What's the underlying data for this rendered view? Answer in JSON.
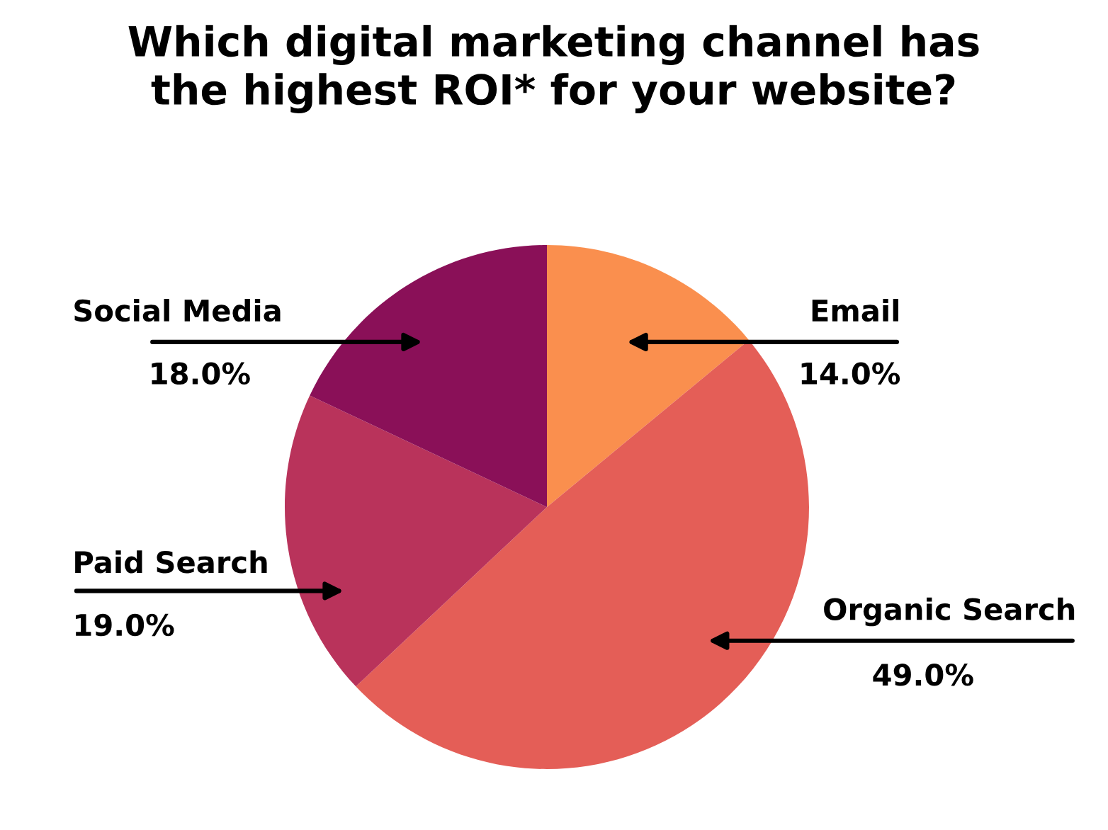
{
  "chart_data": {
    "type": "pie",
    "title": "Which digital marketing channel has\nthe highest ROI* for your website?",
    "categories": [
      "Email",
      "Organic Search",
      "Paid Search",
      "Social Media"
    ],
    "values": [
      14.0,
      49.0,
      19.0,
      18.0
    ],
    "colors": [
      "#fa8f4e",
      "#e45e57",
      "#b9335b",
      "#8a1058"
    ],
    "value_labels": [
      "14.0%",
      "49.0%",
      "19.0%",
      "18.0%"
    ]
  }
}
